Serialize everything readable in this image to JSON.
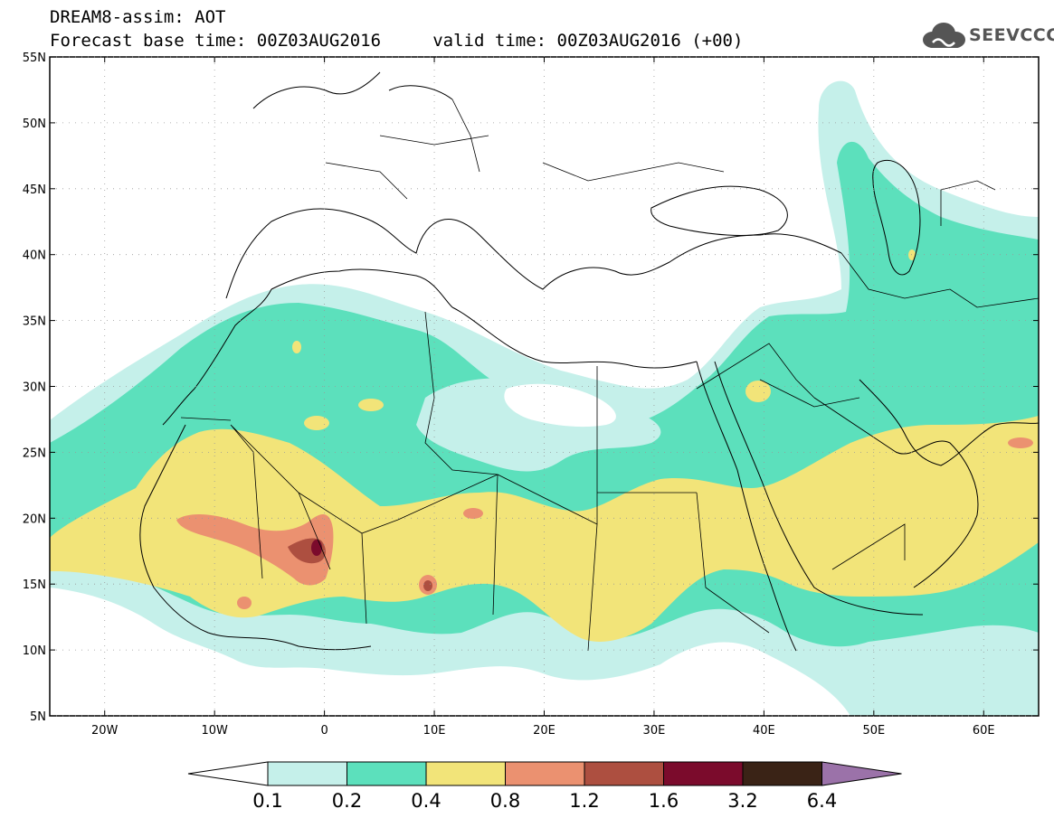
{
  "header": {
    "line1": "DREAM8-assim: AOT",
    "line2": "Forecast base time: 00Z03AUG2016     valid time: 00Z03AUG2016 (+00)"
  },
  "logo": {
    "text": "SEEVCCC",
    "icon": "cloud-logo-icon",
    "color": "#555555"
  },
  "map": {
    "lat_range": [
      5,
      55
    ],
    "lon_range": [
      -25,
      65
    ],
    "lat_labels": [
      {
        "value": 55,
        "label": "55N"
      },
      {
        "value": 50,
        "label": "50N"
      },
      {
        "value": 45,
        "label": "45N"
      },
      {
        "value": 40,
        "label": "40N"
      },
      {
        "value": 35,
        "label": "35N"
      },
      {
        "value": 30,
        "label": "30N"
      },
      {
        "value": 25,
        "label": "25N"
      },
      {
        "value": 20,
        "label": "20N"
      },
      {
        "value": 15,
        "label": "15N"
      },
      {
        "value": 10,
        "label": "10N"
      },
      {
        "value": 5,
        "label": "5N"
      }
    ],
    "lon_labels": [
      {
        "value": -20,
        "label": "20W"
      },
      {
        "value": -10,
        "label": "10W"
      },
      {
        "value": 0,
        "label": "0"
      },
      {
        "value": 10,
        "label": "10E"
      },
      {
        "value": 20,
        "label": "20E"
      },
      {
        "value": 30,
        "label": "30E"
      },
      {
        "value": 40,
        "label": "40E"
      },
      {
        "value": 50,
        "label": "50E"
      },
      {
        "value": 60,
        "label": "60E"
      }
    ]
  },
  "colorbar": {
    "levels": [
      "0.1",
      "0.2",
      "0.4",
      "0.8",
      "1.2",
      "1.6",
      "3.2",
      "6.4"
    ],
    "colors": [
      "#ffffff",
      "#c5f0ea",
      "#5ce0bc",
      "#f2e479",
      "#eb9170",
      "#ad4f40",
      "#7b0b2c",
      "#3a2316",
      "#9b72a9"
    ]
  }
}
